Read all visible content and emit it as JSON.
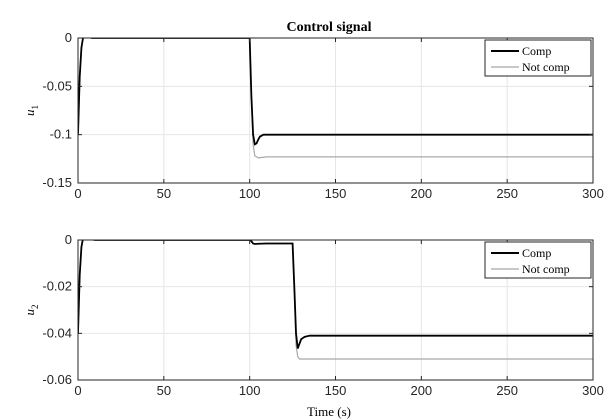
{
  "figure": {
    "title": "Control signal",
    "xlabel": "Time (s)"
  },
  "chart_data": [
    {
      "type": "line",
      "title": "Control signal",
      "xlabel": "",
      "ylabel": "u",
      "ylabel_sub": "1",
      "xlim": [
        0,
        300
      ],
      "ylim": [
        -0.15,
        0
      ],
      "xticks": [
        0,
        50,
        100,
        150,
        200,
        250,
        300
      ],
      "xtick_labels": [
        "0",
        "50",
        "100",
        "150",
        "200",
        "250",
        "300"
      ],
      "yticks": [
        0,
        -0.05,
        -0.1,
        -0.15
      ],
      "ytick_labels": [
        "0",
        "-0.05",
        "-0.1",
        "-0.15"
      ],
      "grid": true,
      "legend": "top-right",
      "series": [
        {
          "name": "Not comp",
          "color": "#a8a8a8",
          "x": [
            0,
            1,
            2,
            3,
            4,
            5,
            6,
            7,
            8,
            10,
            15,
            20,
            50,
            99,
            100,
            101,
            102,
            103,
            105,
            110,
            150,
            200,
            250,
            300
          ],
          "y": [
            -0.1,
            -0.04,
            -0.01,
            0.001,
            0.002,
            0.002,
            0.001,
            0.001,
            0.0,
            0.0,
            0.0,
            0.0,
            0.0,
            0.0,
            0.0,
            -0.06,
            -0.11,
            -0.122,
            -0.124,
            -0.123,
            -0.123,
            -0.123,
            -0.123,
            -0.123
          ]
        },
        {
          "name": "Comp",
          "color": "#000000",
          "x": [
            0,
            1,
            2,
            3,
            4,
            5,
            6,
            7,
            8,
            10,
            15,
            20,
            50,
            99,
            100,
            101,
            102,
            103,
            104,
            105,
            106,
            108,
            110,
            150,
            200,
            250,
            300
          ],
          "y": [
            -0.1,
            -0.04,
            -0.01,
            0.001,
            0.002,
            0.002,
            0.001,
            0.001,
            0.0,
            0.0,
            0.0,
            0.0,
            0.0,
            0.0,
            0.0,
            -0.06,
            -0.1,
            -0.11,
            -0.109,
            -0.105,
            -0.102,
            -0.1,
            -0.1,
            -0.1,
            -0.1,
            -0.1,
            -0.1
          ]
        }
      ]
    },
    {
      "type": "line",
      "title": "",
      "xlabel": "Time (s)",
      "ylabel": "u",
      "ylabel_sub": "2",
      "xlim": [
        0,
        300
      ],
      "ylim": [
        -0.06,
        0
      ],
      "xticks": [
        0,
        50,
        100,
        150,
        200,
        250,
        300
      ],
      "xtick_labels": [
        "0",
        "50",
        "100",
        "150",
        "200",
        "250",
        "300"
      ],
      "yticks": [
        0,
        -0.02,
        -0.04,
        -0.06
      ],
      "ytick_labels": [
        "0",
        "-0.02",
        "-0.04",
        "-0.06"
      ],
      "grid": true,
      "legend": "top-right",
      "series": [
        {
          "name": "Not comp",
          "color": "#a8a8a8",
          "x": [
            0,
            1,
            2,
            3,
            4,
            5,
            6,
            8,
            10,
            20,
            50,
            99,
            100,
            101,
            102,
            103,
            105,
            110,
            125,
            126,
            127,
            128,
            129,
            130,
            135,
            150,
            200,
            250,
            300
          ],
          "y": [
            -0.04,
            -0.015,
            -0.003,
            0.001,
            0.001,
            0.001,
            0.0005,
            0.0002,
            0.0,
            0.0,
            0.0,
            0.0,
            0.0,
            -0.0005,
            -0.0015,
            -0.0017,
            -0.0016,
            -0.0015,
            -0.0015,
            -0.02,
            -0.045,
            -0.05,
            -0.051,
            -0.051,
            -0.051,
            -0.051,
            -0.051,
            -0.051,
            -0.051
          ]
        },
        {
          "name": "Comp",
          "color": "#000000",
          "x": [
            0,
            1,
            2,
            3,
            4,
            5,
            6,
            8,
            10,
            20,
            50,
            99,
            100,
            101,
            102,
            103,
            105,
            110,
            125,
            126,
            127,
            128,
            129,
            130,
            132,
            135,
            150,
            200,
            250,
            300
          ],
          "y": [
            -0.04,
            -0.015,
            -0.003,
            0.001,
            0.001,
            0.001,
            0.0005,
            0.0002,
            0.0,
            0.0,
            0.0,
            0.0,
            0.0,
            -0.0005,
            -0.0015,
            -0.0017,
            -0.0016,
            -0.0015,
            -0.0015,
            -0.02,
            -0.04,
            -0.0465,
            -0.0445,
            -0.0425,
            -0.0415,
            -0.041,
            -0.041,
            -0.041,
            -0.041,
            -0.041
          ]
        }
      ]
    }
  ]
}
